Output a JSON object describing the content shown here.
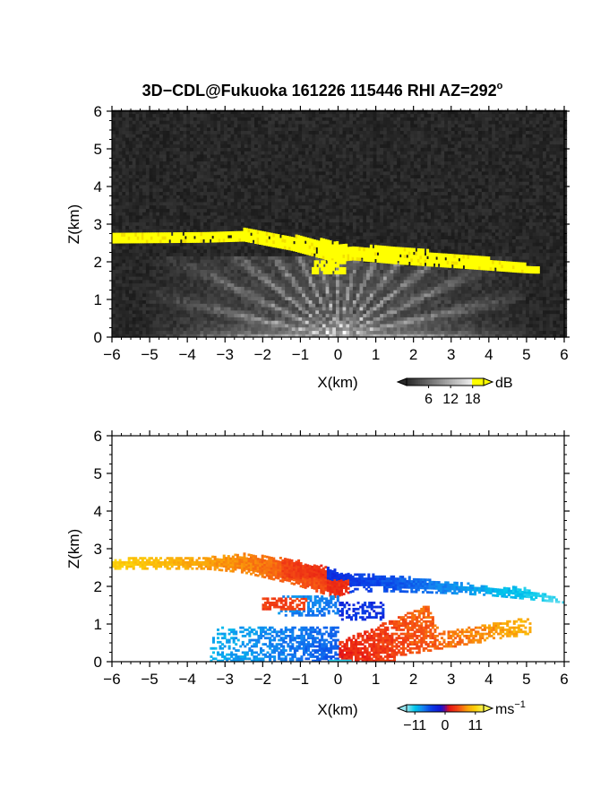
{
  "title": "3D−CDL@Fukuoka 161226 115446 RHI AZ=292",
  "title_sup": "o",
  "chart_data": [
    {
      "type": "heatmap",
      "quantity": "backscatter",
      "xlabel": "X(km)",
      "ylabel": "Z(km)",
      "xlim": [
        -6,
        6
      ],
      "ylim": [
        0,
        6
      ],
      "xticks": [
        "−6",
        "−5",
        "−4",
        "−3",
        "−2",
        "−1",
        "0",
        "1",
        "2",
        "3",
        "4",
        "5",
        "6"
      ],
      "yticks": [
        "0",
        "1",
        "2",
        "3",
        "4",
        "5",
        "6"
      ],
      "colorbar": {
        "unit": "dB",
        "ticks": [
          "6",
          "12",
          "18"
        ],
        "range": [
          0,
          21
        ]
      },
      "layer_top_km": [
        [
          -6,
          2.68
        ],
        [
          -3.5,
          2.7
        ],
        [
          -2.5,
          2.82
        ],
        [
          -1.2,
          2.65
        ],
        [
          -0.1,
          2.5
        ],
        [
          0.4,
          2.35
        ],
        [
          1.5,
          2.4
        ],
        [
          3,
          2.15
        ],
        [
          4,
          2.05
        ],
        [
          4.8,
          1.95
        ],
        [
          5.2,
          1.8
        ]
      ],
      "layer_bottom_km": [
        [
          -6,
          2.5
        ],
        [
          -3.5,
          2.52
        ],
        [
          -2.5,
          2.55
        ],
        [
          -1.2,
          2.3
        ],
        [
          -0.1,
          2.0
        ],
        [
          0.4,
          2.05
        ],
        [
          1.5,
          1.95
        ],
        [
          3,
          1.85
        ],
        [
          4,
          1.78
        ],
        [
          4.8,
          1.72
        ],
        [
          5.2,
          1.7
        ]
      ]
    },
    {
      "type": "heatmap",
      "quantity": "doppler velocity",
      "xlabel": "X(km)",
      "ylabel": "Z(km)",
      "xlim": [
        -6,
        6
      ],
      "ylim": [
        0,
        6
      ],
      "xticks": [
        "−6",
        "−5",
        "−4",
        "−3",
        "−2",
        "−1",
        "0",
        "1",
        "2",
        "3",
        "4",
        "5",
        "6"
      ],
      "yticks": [
        "0",
        "1",
        "2",
        "3",
        "4",
        "5",
        "6"
      ],
      "colorbar": {
        "unit": "ms",
        "unit_sup": "−1",
        "ticks": [
          "−11",
          "0",
          "11"
        ],
        "range": [
          -14,
          14
        ]
      },
      "layer_top_km": [
        [
          -6,
          2.72
        ],
        [
          -3.5,
          2.75
        ],
        [
          -2.5,
          2.85
        ],
        [
          -1.2,
          2.7
        ],
        [
          -0.1,
          2.45
        ],
        [
          0.4,
          2.3
        ],
        [
          1.5,
          2.28
        ],
        [
          3,
          2.1
        ],
        [
          4,
          2.0
        ],
        [
          5,
          1.95
        ],
        [
          6,
          1.6
        ]
      ],
      "layer_bottom_km": [
        [
          -6,
          2.45
        ],
        [
          -3.5,
          2.45
        ],
        [
          -2.5,
          2.35
        ],
        [
          -1.2,
          2.05
        ],
        [
          -0.1,
          1.7
        ],
        [
          0.4,
          1.85
        ],
        [
          1.5,
          1.85
        ],
        [
          3,
          1.8
        ],
        [
          4,
          1.75
        ],
        [
          5,
          1.65
        ],
        [
          6,
          1.55
        ]
      ]
    }
  ]
}
